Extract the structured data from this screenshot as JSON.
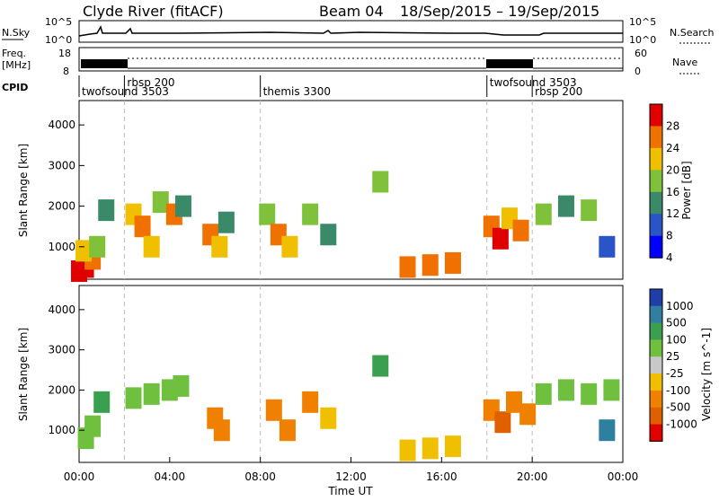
{
  "header": {
    "title": "Clyde River (fitACF)",
    "beam_label": "Beam 04",
    "date_range": "18/Sep/2015 – 19/Sep/2015"
  },
  "noise_panel": {
    "left_label": "N.Sky",
    "left_ticks": [
      "10^5",
      "10^0"
    ],
    "right_label": "N.Search",
    "right_ticks": [
      "10^5",
      "10^0"
    ]
  },
  "freq_panel": {
    "left_label_line1": "Freq.",
    "left_label_line2": "[MHz]",
    "left_ticks": [
      "18",
      "8"
    ],
    "right_label": "Nave",
    "right_ticks": [
      "60",
      "0"
    ]
  },
  "cpid": {
    "label": "CPID",
    "segments": [
      {
        "label": "twofsound 3503",
        "start_h": 0.0
      },
      {
        "label": "rbsp 200",
        "start_h": 2.0
      },
      {
        "label": "themis 3300",
        "start_h": 8.0
      },
      {
        "label": "twofsound 3503",
        "start_h": 18.0
      },
      {
        "label": "rbsp 200",
        "start_h": 20.0
      }
    ]
  },
  "chart_data": [
    {
      "type": "heatmap",
      "name": "power",
      "ylabel": "Slant Range [km]",
      "yticks": [
        1000,
        2000,
        3000,
        4000
      ],
      "ylim": [
        200,
        4600
      ],
      "x_tick_labels": [
        "00:00",
        "04:00",
        "08:00",
        "12:00",
        "16:00",
        "20:00",
        "00:00"
      ],
      "xlim_hours": [
        0,
        24
      ],
      "colorbar": {
        "label": "Power [dB]",
        "ticks": [
          "4",
          "8",
          "12",
          "16",
          "20",
          "24",
          "28"
        ],
        "colors": [
          "#0000ff",
          "#2a55c8",
          "#3a8a6a",
          "#7fc13a",
          "#f0c000",
          "#f07000",
          "#e00000"
        ]
      },
      "cells": [
        {
          "t": 0.0,
          "r": 400,
          "v": 28
        },
        {
          "t": 0.3,
          "r": 500,
          "v": 26
        },
        {
          "t": 0.6,
          "r": 700,
          "v": 24
        },
        {
          "t": 0.2,
          "r": 900,
          "v": 20
        },
        {
          "t": 0.8,
          "r": 1000,
          "v": 16
        },
        {
          "t": 1.2,
          "r": 1900,
          "v": 12
        },
        {
          "t": 2.4,
          "r": 1800,
          "v": 20
        },
        {
          "t": 2.8,
          "r": 1500,
          "v": 24
        },
        {
          "t": 3.2,
          "r": 1000,
          "v": 20
        },
        {
          "t": 3.6,
          "r": 2100,
          "v": 16
        },
        {
          "t": 4.2,
          "r": 1800,
          "v": 24
        },
        {
          "t": 4.6,
          "r": 2000,
          "v": 12
        },
        {
          "t": 5.8,
          "r": 1300,
          "v": 24
        },
        {
          "t": 6.2,
          "r": 1000,
          "v": 20
        },
        {
          "t": 6.5,
          "r": 1600,
          "v": 12
        },
        {
          "t": 8.3,
          "r": 1800,
          "v": 16
        },
        {
          "t": 8.8,
          "r": 1300,
          "v": 24
        },
        {
          "t": 9.3,
          "r": 1000,
          "v": 20
        },
        {
          "t": 10.2,
          "r": 1800,
          "v": 16
        },
        {
          "t": 11.0,
          "r": 1300,
          "v": 12
        },
        {
          "t": 13.3,
          "r": 2600,
          "v": 16
        },
        {
          "t": 14.5,
          "r": 500,
          "v": 24
        },
        {
          "t": 15.5,
          "r": 550,
          "v": 24
        },
        {
          "t": 16.5,
          "r": 600,
          "v": 24
        },
        {
          "t": 18.2,
          "r": 1500,
          "v": 24
        },
        {
          "t": 18.6,
          "r": 1200,
          "v": 28
        },
        {
          "t": 19.0,
          "r": 1700,
          "v": 20
        },
        {
          "t": 19.5,
          "r": 1400,
          "v": 24
        },
        {
          "t": 20.5,
          "r": 1800,
          "v": 16
        },
        {
          "t": 21.5,
          "r": 2000,
          "v": 12
        },
        {
          "t": 22.5,
          "r": 1900,
          "v": 16
        },
        {
          "t": 23.3,
          "r": 1000,
          "v": 8
        }
      ]
    },
    {
      "type": "heatmap",
      "name": "velocity",
      "ylabel": "Slant Range [km]",
      "yticks": [
        1000,
        2000,
        3000,
        4000
      ],
      "ylim": [
        200,
        4600
      ],
      "x_tick_labels": [
        "00:00",
        "04:00",
        "08:00",
        "12:00",
        "16:00",
        "20:00",
        "00:00"
      ],
      "xlim_hours": [
        0,
        24
      ],
      "xlabel": "Time UT",
      "colorbar": {
        "label": "Velocity [m s^-1]",
        "ticks": [
          "1000",
          "500",
          "100",
          "25",
          "-25",
          "-100",
          "-500",
          "-1000"
        ],
        "colors": [
          "#1f3fa8",
          "#2f7fa0",
          "#3aa050",
          "#70c040",
          "#c8c8c8",
          "#f0c000",
          "#f08000",
          "#e06000",
          "#e00000"
        ]
      },
      "cells": [
        {
          "t": 0.3,
          "r": 800,
          "v": 25
        },
        {
          "t": 0.6,
          "r": 1100,
          "v": 25
        },
        {
          "t": 1.0,
          "r": 1700,
          "v": 100
        },
        {
          "t": 2.4,
          "r": 1800,
          "v": 25
        },
        {
          "t": 3.2,
          "r": 1900,
          "v": 25
        },
        {
          "t": 4.0,
          "r": 2000,
          "v": 25
        },
        {
          "t": 4.5,
          "r": 2100,
          "v": 25
        },
        {
          "t": 6.0,
          "r": 1300,
          "v": -500
        },
        {
          "t": 6.3,
          "r": 1000,
          "v": -500
        },
        {
          "t": 8.6,
          "r": 1500,
          "v": -500
        },
        {
          "t": 9.2,
          "r": 1000,
          "v": -500
        },
        {
          "t": 10.2,
          "r": 1700,
          "v": -500
        },
        {
          "t": 11.0,
          "r": 1300,
          "v": -100
        },
        {
          "t": 13.3,
          "r": 2600,
          "v": 100
        },
        {
          "t": 14.5,
          "r": 500,
          "v": -100
        },
        {
          "t": 15.5,
          "r": 550,
          "v": -100
        },
        {
          "t": 16.5,
          "r": 600,
          "v": -100
        },
        {
          "t": 18.2,
          "r": 1500,
          "v": -500
        },
        {
          "t": 18.7,
          "r": 1200,
          "v": -1000
        },
        {
          "t": 19.2,
          "r": 1700,
          "v": -500
        },
        {
          "t": 19.8,
          "r": 1400,
          "v": -500
        },
        {
          "t": 20.5,
          "r": 1900,
          "v": 25
        },
        {
          "t": 21.5,
          "r": 2000,
          "v": 25
        },
        {
          "t": 22.5,
          "r": 1900,
          "v": 25
        },
        {
          "t": 23.3,
          "r": 1000,
          "v": 500
        },
        {
          "t": 23.5,
          "r": 2000,
          "v": 25
        }
      ]
    }
  ]
}
